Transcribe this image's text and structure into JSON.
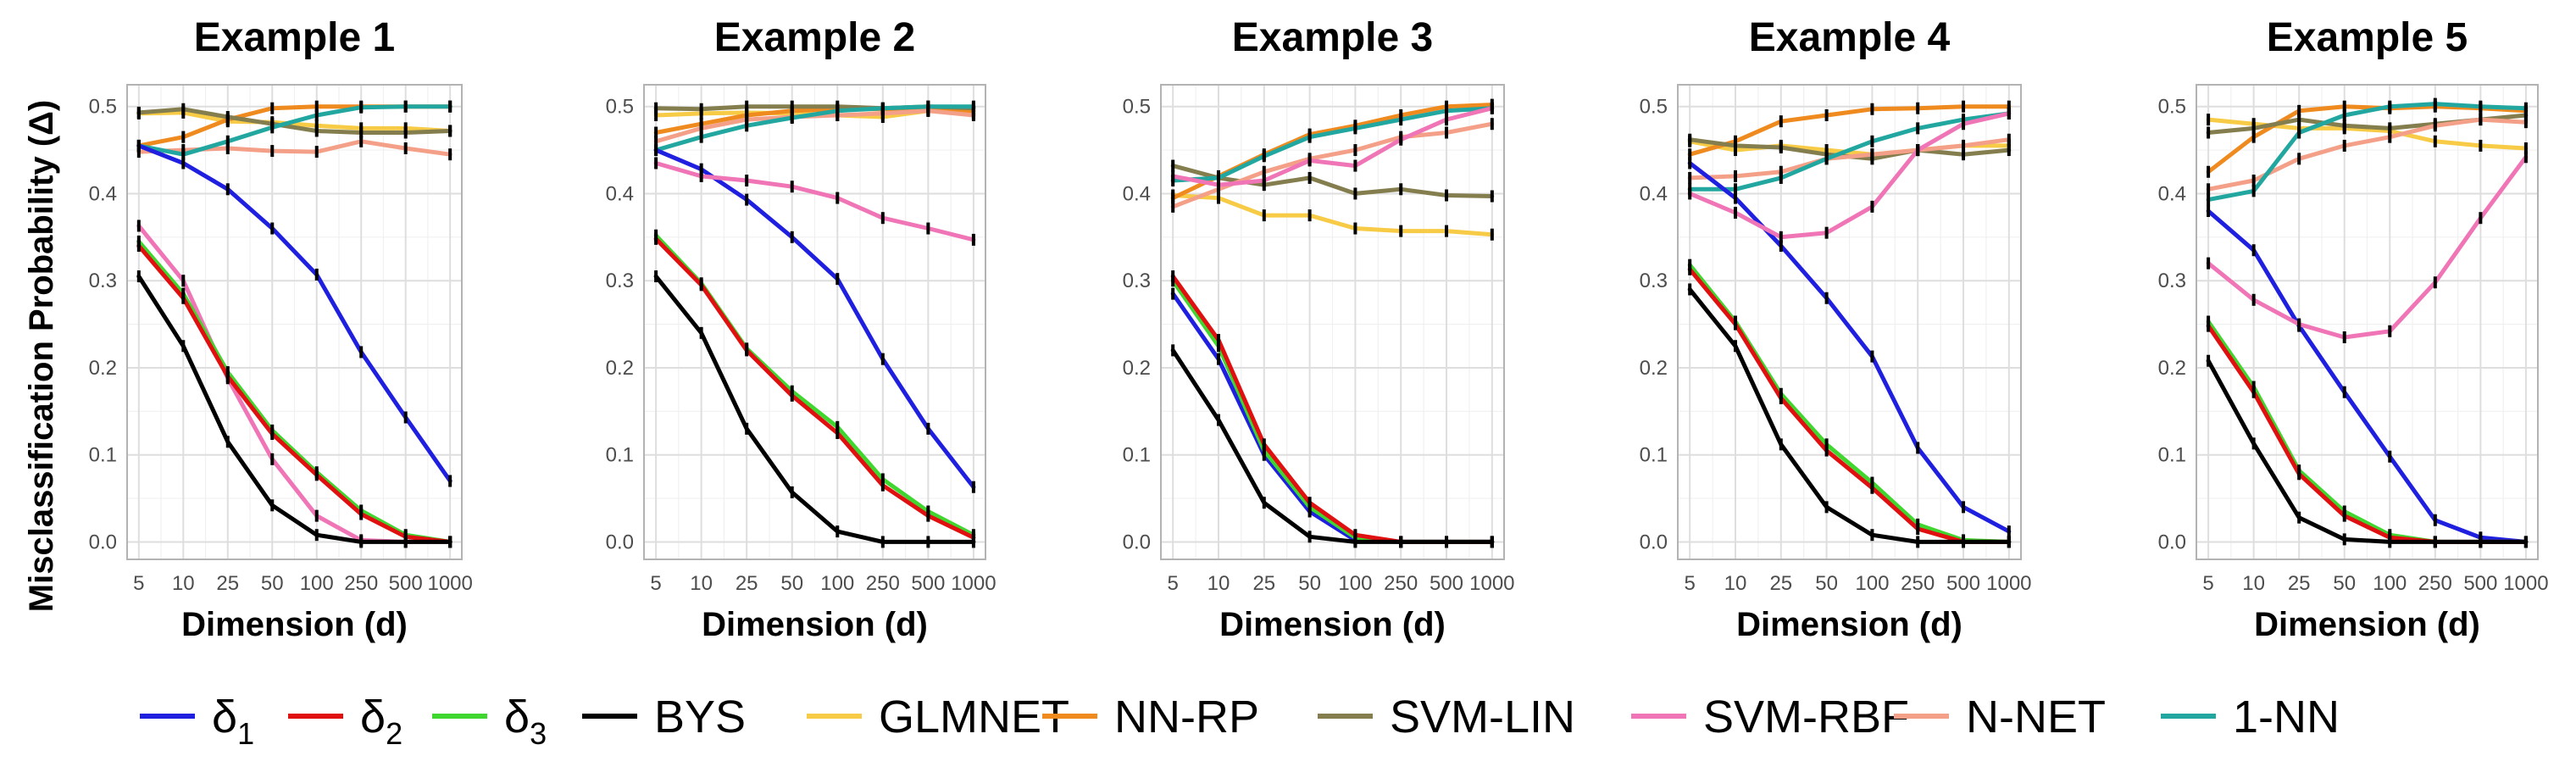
{
  "ylabel": "Misclassification  Probability (Δ)",
  "legend": [
    {
      "label": "δ",
      "sub": "1",
      "color": "#1F1FE0"
    },
    {
      "label": "δ",
      "sub": "2",
      "color": "#E01010"
    },
    {
      "label": "δ",
      "sub": "3",
      "color": "#3FD62F"
    },
    {
      "label": "BYS",
      "sub": "",
      "color": "#000000"
    },
    {
      "label": "GLMNET",
      "sub": "",
      "color": "#F7CB45"
    },
    {
      "label": "NN-RP",
      "sub": "",
      "color": "#EF8A1E"
    },
    {
      "label": "SVM-LIN",
      "sub": "",
      "color": "#847E4E"
    },
    {
      "label": "SVM-RBF",
      "sub": "",
      "color": "#F075B6"
    },
    {
      "label": "N-NET",
      "sub": "",
      "color": "#F4A088"
    },
    {
      "label": "1-NN",
      "sub": "",
      "color": "#22A7A0"
    }
  ],
  "chart_data": [
    {
      "type": "line",
      "title": "Example 1",
      "xlabel": "Dimension (d)",
      "ylabel": "Misclassification  Probability (Δ)",
      "categories": [
        "5",
        "10",
        "25",
        "50",
        "100",
        "250",
        "500",
        "1000"
      ],
      "ylim": [
        -0.02,
        0.525
      ],
      "yticks": [
        0.0,
        0.1,
        0.2,
        0.3,
        0.4,
        0.5
      ],
      "grid": true,
      "series": [
        {
          "name": "GLMNET",
          "color": "#F7CB45",
          "values": [
            0.492,
            0.493,
            0.483,
            0.482,
            0.478,
            0.475,
            0.475,
            0.472
          ]
        },
        {
          "name": "NN-RP",
          "color": "#EF8A1E",
          "values": [
            0.455,
            0.465,
            0.485,
            0.498,
            0.5,
            0.5,
            0.5,
            0.5
          ]
        },
        {
          "name": "SVM-LIN",
          "color": "#847E4E",
          "values": [
            0.493,
            0.497,
            0.488,
            0.48,
            0.472,
            0.47,
            0.47,
            0.472
          ]
        },
        {
          "name": "N-NET",
          "color": "#F4A088",
          "values": [
            0.448,
            0.45,
            0.452,
            0.449,
            0.448,
            0.46,
            0.452,
            0.445
          ]
        },
        {
          "name": "1-NN",
          "color": "#22A7A0",
          "values": [
            0.455,
            0.445,
            0.46,
            0.476,
            0.49,
            0.499,
            0.5,
            0.5
          ]
        },
        {
          "name": "δ1",
          "color": "#1F1FE0",
          "values": [
            0.455,
            0.435,
            0.405,
            0.36,
            0.307,
            0.218,
            0.143,
            0.07
          ]
        },
        {
          "name": "SVM-RBF",
          "color": "#F075B6",
          "values": [
            0.363,
            0.3,
            0.188,
            0.095,
            0.03,
            0.002,
            0.0,
            0.0
          ]
        },
        {
          "name": "δ3",
          "color": "#3FD62F",
          "values": [
            0.345,
            0.285,
            0.195,
            0.128,
            0.08,
            0.036,
            0.008,
            0.0
          ]
        },
        {
          "name": "δ2",
          "color": "#E01010",
          "values": [
            0.34,
            0.28,
            0.19,
            0.124,
            0.077,
            0.032,
            0.006,
            0.0
          ]
        },
        {
          "name": "BYS",
          "color": "#000000",
          "values": [
            0.305,
            0.225,
            0.115,
            0.042,
            0.008,
            0.0,
            0.0,
            0.0
          ]
        }
      ]
    },
    {
      "type": "line",
      "title": "Example 2",
      "xlabel": "Dimension (d)",
      "ylabel": "Misclassification  Probability (Δ)",
      "categories": [
        "5",
        "10",
        "25",
        "50",
        "100",
        "250",
        "500",
        "1000"
      ],
      "ylim": [
        -0.02,
        0.525
      ],
      "yticks": [
        0.0,
        0.1,
        0.2,
        0.3,
        0.4,
        0.5
      ],
      "grid": true,
      "series": [
        {
          "name": "GLMNET",
          "color": "#F7CB45",
          "values": [
            0.49,
            0.492,
            0.493,
            0.492,
            0.49,
            0.488,
            0.495,
            0.492
          ]
        },
        {
          "name": "NN-RP",
          "color": "#EF8A1E",
          "values": [
            0.47,
            0.48,
            0.49,
            0.495,
            0.497,
            0.497,
            0.497,
            0.495
          ]
        },
        {
          "name": "SVM-LIN",
          "color": "#847E4E",
          "values": [
            0.498,
            0.497,
            0.5,
            0.5,
            0.5,
            0.498,
            0.5,
            0.498
          ]
        },
        {
          "name": "N-NET",
          "color": "#F4A088",
          "values": [
            0.46,
            0.475,
            0.485,
            0.488,
            0.49,
            0.492,
            0.495,
            0.49
          ]
        },
        {
          "name": "1-NN",
          "color": "#22A7A0",
          "values": [
            0.45,
            0.465,
            0.478,
            0.487,
            0.495,
            0.498,
            0.5,
            0.5
          ]
        },
        {
          "name": "δ1",
          "color": "#1F1FE0",
          "values": [
            0.45,
            0.428,
            0.393,
            0.35,
            0.302,
            0.21,
            0.13,
            0.063
          ]
        },
        {
          "name": "SVM-RBF",
          "color": "#F075B6",
          "values": [
            0.435,
            0.42,
            0.415,
            0.408,
            0.395,
            0.372,
            0.36,
            0.347
          ]
        },
        {
          "name": "δ3",
          "color": "#3FD62F",
          "values": [
            0.352,
            0.297,
            0.222,
            0.173,
            0.132,
            0.072,
            0.035,
            0.008
          ]
        },
        {
          "name": "δ2",
          "color": "#E01010",
          "values": [
            0.348,
            0.295,
            0.22,
            0.168,
            0.125,
            0.065,
            0.03,
            0.005
          ]
        },
        {
          "name": "BYS",
          "color": "#000000",
          "values": [
            0.305,
            0.24,
            0.13,
            0.057,
            0.012,
            0.0,
            0.0,
            0.0
          ]
        }
      ]
    },
    {
      "type": "line",
      "title": "Example 3",
      "xlabel": "Dimension (d)",
      "ylabel": "Misclassification  Probability (Δ)",
      "categories": [
        "5",
        "10",
        "25",
        "50",
        "100",
        "250",
        "500",
        "1000"
      ],
      "ylim": [
        -0.02,
        0.525
      ],
      "yticks": [
        0.0,
        0.1,
        0.2,
        0.3,
        0.4,
        0.5
      ],
      "grid": true,
      "series": [
        {
          "name": "GLMNET",
          "color": "#F7CB45",
          "values": [
            0.398,
            0.395,
            0.375,
            0.375,
            0.36,
            0.357,
            0.357,
            0.353
          ]
        },
        {
          "name": "NN-RP",
          "color": "#EF8A1E",
          "values": [
            0.395,
            0.42,
            0.445,
            0.468,
            0.478,
            0.49,
            0.5,
            0.502
          ]
        },
        {
          "name": "SVM-LIN",
          "color": "#847E4E",
          "values": [
            0.432,
            0.418,
            0.41,
            0.418,
            0.4,
            0.405,
            0.398,
            0.397
          ]
        },
        {
          "name": "N-NET",
          "color": "#F4A088",
          "values": [
            0.385,
            0.405,
            0.425,
            0.44,
            0.45,
            0.465,
            0.47,
            0.48
          ]
        },
        {
          "name": "1-NN",
          "color": "#22A7A0",
          "values": [
            0.415,
            0.418,
            0.443,
            0.465,
            0.475,
            0.485,
            0.495,
            0.498
          ]
        },
        {
          "name": "δ1",
          "color": "#1F1FE0",
          "values": [
            0.285,
            0.21,
            0.1,
            0.035,
            0.002,
            0.0,
            0.0,
            0.0
          ]
        },
        {
          "name": "SVM-RBF",
          "color": "#F075B6",
          "values": [
            0.42,
            0.41,
            0.415,
            0.438,
            0.432,
            0.462,
            0.485,
            0.498
          ]
        },
        {
          "name": "δ3",
          "color": "#3FD62F",
          "values": [
            0.3,
            0.225,
            0.105,
            0.04,
            0.005,
            0.0,
            0.0,
            0.0
          ]
        },
        {
          "name": "δ2",
          "color": "#E01010",
          "values": [
            0.305,
            0.232,
            0.112,
            0.045,
            0.008,
            0.0,
            0.0,
            0.0
          ]
        },
        {
          "name": "BYS",
          "color": "#000000",
          "values": [
            0.22,
            0.14,
            0.045,
            0.006,
            0.0,
            0.0,
            0.0,
            0.0
          ]
        }
      ]
    },
    {
      "type": "line",
      "title": "Example 4",
      "xlabel": "Dimension (d)",
      "ylabel": "Misclassification  Probability (Δ)",
      "categories": [
        "5",
        "10",
        "25",
        "50",
        "100",
        "250",
        "500",
        "1000"
      ],
      "ylim": [
        -0.02,
        0.525
      ],
      "yticks": [
        0.0,
        0.1,
        0.2,
        0.3,
        0.4,
        0.5
      ],
      "grid": true,
      "series": [
        {
          "name": "GLMNET",
          "color": "#F7CB45",
          "values": [
            0.46,
            0.45,
            0.455,
            0.45,
            0.445,
            0.45,
            0.455,
            0.455
          ]
        },
        {
          "name": "NN-RP",
          "color": "#EF8A1E",
          "values": [
            0.445,
            0.46,
            0.483,
            0.49,
            0.497,
            0.498,
            0.5,
            0.5
          ]
        },
        {
          "name": "SVM-LIN",
          "color": "#847E4E",
          "values": [
            0.462,
            0.455,
            0.453,
            0.445,
            0.44,
            0.45,
            0.445,
            0.45
          ]
        },
        {
          "name": "N-NET",
          "color": "#F4A088",
          "values": [
            0.418,
            0.42,
            0.425,
            0.44,
            0.445,
            0.45,
            0.455,
            0.462
          ]
        },
        {
          "name": "1-NN",
          "color": "#22A7A0",
          "values": [
            0.405,
            0.405,
            0.418,
            0.44,
            0.46,
            0.475,
            0.485,
            0.492
          ]
        },
        {
          "name": "δ1",
          "color": "#1F1FE0",
          "values": [
            0.435,
            0.395,
            0.34,
            0.28,
            0.213,
            0.108,
            0.04,
            0.012
          ]
        },
        {
          "name": "SVM-RBF",
          "color": "#F075B6",
          "values": [
            0.4,
            0.378,
            0.35,
            0.355,
            0.385,
            0.45,
            0.48,
            0.492
          ]
        },
        {
          "name": "δ3",
          "color": "#3FD62F",
          "values": [
            0.318,
            0.253,
            0.17,
            0.112,
            0.068,
            0.02,
            0.002,
            0.0
          ]
        },
        {
          "name": "δ2",
          "color": "#E01010",
          "values": [
            0.313,
            0.25,
            0.165,
            0.105,
            0.062,
            0.015,
            0.0,
            0.0
          ]
        },
        {
          "name": "BYS",
          "color": "#000000",
          "values": [
            0.29,
            0.225,
            0.112,
            0.04,
            0.008,
            0.0,
            0.0,
            0.0
          ]
        }
      ]
    },
    {
      "type": "line",
      "title": "Example 5",
      "xlabel": "Dimension (d)",
      "ylabel": "Misclassification  Probability (Δ)",
      "categories": [
        "5",
        "10",
        "25",
        "50",
        "100",
        "250",
        "500",
        "1000"
      ],
      "ylim": [
        -0.02,
        0.525
      ],
      "yticks": [
        0.0,
        0.1,
        0.2,
        0.3,
        0.4,
        0.5
      ],
      "grid": true,
      "series": [
        {
          "name": "GLMNET",
          "color": "#F7CB45",
          "values": [
            0.485,
            0.48,
            0.475,
            0.475,
            0.472,
            0.46,
            0.455,
            0.452
          ]
        },
        {
          "name": "NN-RP",
          "color": "#EF8A1E",
          "values": [
            0.425,
            0.465,
            0.495,
            0.5,
            0.498,
            0.5,
            0.498,
            0.495
          ]
        },
        {
          "name": "SVM-LIN",
          "color": "#847E4E",
          "values": [
            0.47,
            0.475,
            0.485,
            0.478,
            0.475,
            0.48,
            0.485,
            0.49
          ]
        },
        {
          "name": "N-NET",
          "color": "#F4A088",
          "values": [
            0.405,
            0.415,
            0.44,
            0.455,
            0.465,
            0.478,
            0.485,
            0.482
          ]
        },
        {
          "name": "1-NN",
          "color": "#22A7A0",
          "values": [
            0.393,
            0.403,
            0.47,
            0.49,
            0.5,
            0.503,
            0.5,
            0.498
          ]
        },
        {
          "name": "δ1",
          "color": "#1F1FE0",
          "values": [
            0.38,
            0.335,
            0.248,
            0.172,
            0.098,
            0.025,
            0.005,
            0.0
          ]
        },
        {
          "name": "SVM-RBF",
          "color": "#F075B6",
          "values": [
            0.32,
            0.278,
            0.25,
            0.235,
            0.242,
            0.298,
            0.372,
            0.442
          ]
        },
        {
          "name": "δ3",
          "color": "#3FD62F",
          "values": [
            0.253,
            0.178,
            0.082,
            0.035,
            0.008,
            0.0,
            0.0,
            0.0
          ]
        },
        {
          "name": "δ2",
          "color": "#E01010",
          "values": [
            0.248,
            0.172,
            0.078,
            0.03,
            0.005,
            0.0,
            0.0,
            0.0
          ]
        },
        {
          "name": "BYS",
          "color": "#000000",
          "values": [
            0.208,
            0.113,
            0.028,
            0.003,
            0.0,
            0.0,
            0.0,
            0.0
          ]
        }
      ]
    }
  ]
}
